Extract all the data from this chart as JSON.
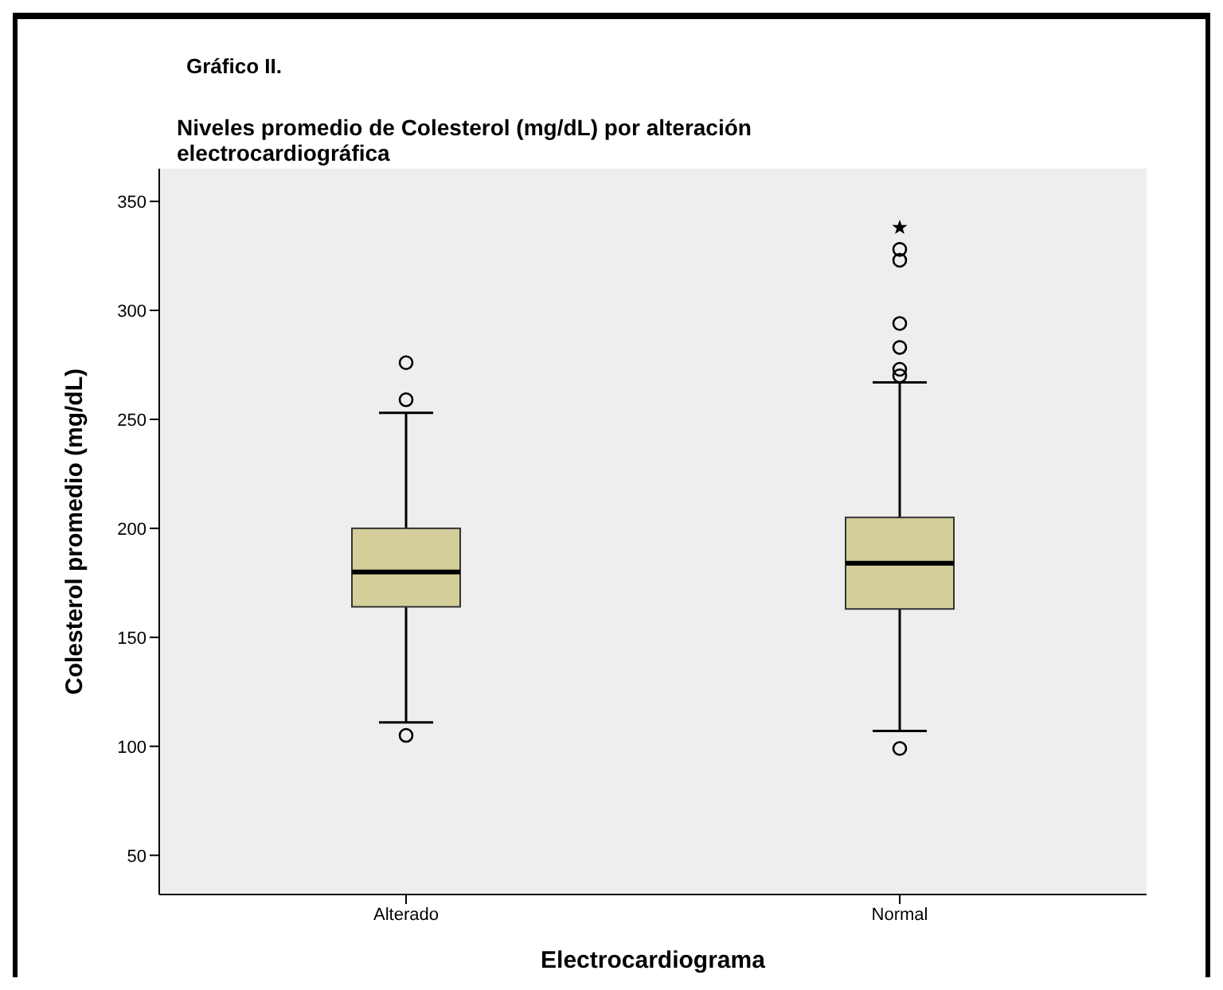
{
  "chart_data": {
    "type": "box",
    "title": "Gráfico II.",
    "subtitle": "Niveles promedio de Colesterol (mg/dL) por alteración electrocardiográfica",
    "xlabel": "Electrocardiograma",
    "ylabel": "Colesterol promedio (mg/dL)",
    "categories": [
      "Alterado",
      "Normal"
    ],
    "boxes": [
      {
        "low": 111,
        "q1": 164,
        "median": 180,
        "q3": 200,
        "high": 253,
        "outliers": [
          105,
          259,
          276
        ]
      },
      {
        "low": 107,
        "q1": 163,
        "median": 184,
        "q3": 205,
        "high": 267,
        "outliers": [
          99,
          270,
          273,
          283,
          294,
          323,
          328,
          338
        ]
      }
    ],
    "color": "#d4cf9a",
    "ylim": [
      32,
      365
    ],
    "yticks": [
      50,
      100,
      150,
      200,
      250,
      300,
      350
    ]
  }
}
